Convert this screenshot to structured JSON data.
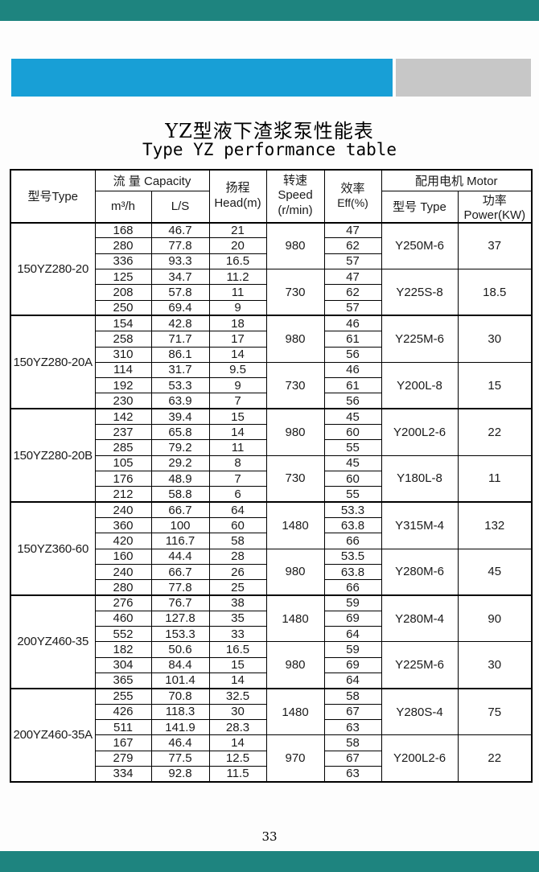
{
  "page": {
    "page_number": "33"
  },
  "titles": {
    "zh": "YZ型液下渣浆泵性能表",
    "en": "Type YZ performance table"
  },
  "colors": {
    "teal_bar": "#1e847f",
    "blue_accent": "#189fd6",
    "gray_accent": "#c7c7c7"
  },
  "table": {
    "headers": {
      "type": "型号Type",
      "capacity": "流  量 Capacity",
      "m3h": "m³/h",
      "ls": "L/S",
      "head_zh": "扬程",
      "head_en": "Head(m)",
      "speed_zh": "转速Speed",
      "speed_unit": "(r/min)",
      "eff_zh": "效率",
      "eff_en": "Eff(%)",
      "motor": "配用电机   Motor",
      "motor_type": "型号 Type",
      "power": "功率Power(KW)"
    },
    "groups": [
      {
        "model": "150YZ280-20",
        "halves": [
          {
            "speed": "980",
            "motor": "Y250M-6",
            "power": "37",
            "rows": [
              [
                "168",
                "46.7",
                "21",
                "47"
              ],
              [
                "280",
                "77.8",
                "20",
                "62"
              ],
              [
                "336",
                "93.3",
                "16.5",
                "57"
              ]
            ]
          },
          {
            "speed": "730",
            "motor": "Y225S-8",
            "power": "18.5",
            "rows": [
              [
                "125",
                "34.7",
                "11.2",
                "47"
              ],
              [
                "208",
                "57.8",
                "11",
                "62"
              ],
              [
                "250",
                "69.4",
                "9",
                "57"
              ]
            ]
          }
        ]
      },
      {
        "model": "150YZ280-20A",
        "halves": [
          {
            "speed": "980",
            "motor": "Y225M-6",
            "power": "30",
            "rows": [
              [
                "154",
                "42.8",
                "18",
                "46"
              ],
              [
                "258",
                "71.7",
                "17",
                "61"
              ],
              [
                "310",
                "86.1",
                "14",
                "56"
              ]
            ]
          },
          {
            "speed": "730",
            "motor": "Y200L-8",
            "power": "15",
            "rows": [
              [
                "114",
                "31.7",
                "9.5",
                "46"
              ],
              [
                "192",
                "53.3",
                "9",
                "61"
              ],
              [
                "230",
                "63.9",
                "7",
                "56"
              ]
            ]
          }
        ]
      },
      {
        "model": "150YZ280-20B",
        "halves": [
          {
            "speed": "980",
            "motor": "Y200L2-6",
            "power": "22",
            "rows": [
              [
                "142",
                "39.4",
                "15",
                "45"
              ],
              [
                "237",
                "65.8",
                "14",
                "60"
              ],
              [
                "285",
                "79.2",
                "11",
                "55"
              ]
            ]
          },
          {
            "speed": "730",
            "motor": "Y180L-8",
            "power": "11",
            "rows": [
              [
                "105",
                "29.2",
                "8",
                "45"
              ],
              [
                "176",
                "48.9",
                "7",
                "60"
              ],
              [
                "212",
                "58.8",
                "6",
                "55"
              ]
            ]
          }
        ]
      },
      {
        "model": "150YZ360-60",
        "halves": [
          {
            "speed": "1480",
            "motor": "Y315M-4",
            "power": "132",
            "rows": [
              [
                "240",
                "66.7",
                "64",
                "53.3"
              ],
              [
                "360",
                "100",
                "60",
                "63.8"
              ],
              [
                "420",
                "116.7",
                "58",
                "66"
              ]
            ]
          },
          {
            "speed": "980",
            "motor": "Y280M-6",
            "power": "45",
            "rows": [
              [
                "160",
                "44.4",
                "28",
                "53.5"
              ],
              [
                "240",
                "66.7",
                "26",
                "63.8"
              ],
              [
                "280",
                "77.8",
                "25",
                "66"
              ]
            ]
          }
        ]
      },
      {
        "model": "200YZ460-35",
        "halves": [
          {
            "speed": "1480",
            "motor": "Y280M-4",
            "power": "90",
            "rows": [
              [
                "276",
                "76.7",
                "38",
                "59"
              ],
              [
                "460",
                "127.8",
                "35",
                "69"
              ],
              [
                "552",
                "153.3",
                "33",
                "64"
              ]
            ]
          },
          {
            "speed": "980",
            "motor": "Y225M-6",
            "power": "30",
            "rows": [
              [
                "182",
                "50.6",
                "16.5",
                "59"
              ],
              [
                "304",
                "84.4",
                "15",
                "69"
              ],
              [
                "365",
                "101.4",
                "14",
                "64"
              ]
            ]
          }
        ]
      },
      {
        "model": "200YZ460-35A",
        "halves": [
          {
            "speed": "1480",
            "motor": "Y280S-4",
            "power": "75",
            "rows": [
              [
                "255",
                "70.8",
                "32.5",
                "58"
              ],
              [
                "426",
                "118.3",
                "30",
                "67"
              ],
              [
                "511",
                "141.9",
                "28.3",
                "63"
              ]
            ]
          },
          {
            "speed": "970",
            "motor": "Y200L2-6",
            "power": "22",
            "rows": [
              [
                "167",
                "46.4",
                "14",
                "58"
              ],
              [
                "279",
                "77.5",
                "12.5",
                "67"
              ],
              [
                "334",
                "92.8",
                "11.5",
                "63"
              ]
            ]
          }
        ]
      }
    ]
  }
}
